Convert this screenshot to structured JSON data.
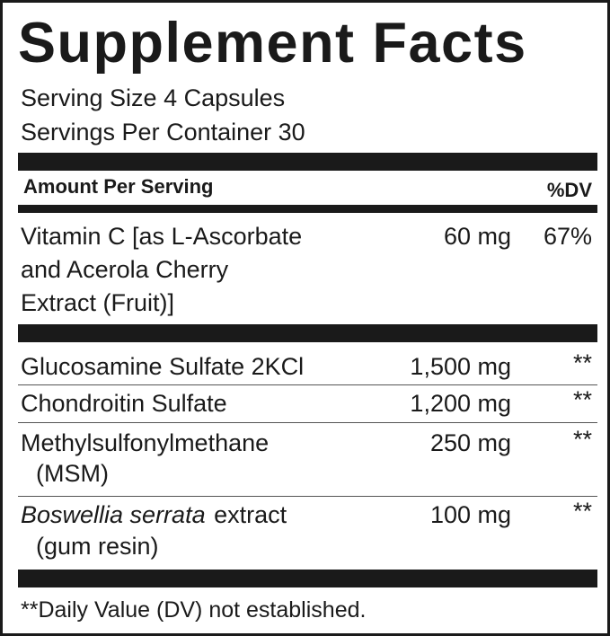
{
  "title": "Supplement Facts",
  "serving_size": "Serving Size 4 Capsules",
  "servings_per_container": "Servings Per Container 30",
  "header": {
    "amount": "Amount Per Serving",
    "dv": "%DV"
  },
  "rows": [
    {
      "name_lines": [
        "Vitamin C [as L-Ascorbate",
        "and Acerola Cherry",
        "Extract (Fruit)]"
      ],
      "amount": "60 mg",
      "dv": "67%"
    },
    {
      "name_lines": [
        "Glucosamine Sulfate 2KCl"
      ],
      "amount": "1,500 mg",
      "dv": "**"
    },
    {
      "name_lines": [
        "Chondroitin Sulfate"
      ],
      "amount": "1,200 mg",
      "dv": "**"
    },
    {
      "name_lines": [
        "Methylsulfonylmethane",
        "(MSM)"
      ],
      "amount": "250 mg",
      "dv": "**"
    },
    {
      "name_italic": "Boswellia serrata",
      "name_lines": [
        "extract",
        "(gum resin)"
      ],
      "amount": "100 mg",
      "dv": "**"
    }
  ],
  "footnote": "**Daily Value (DV) not established."
}
